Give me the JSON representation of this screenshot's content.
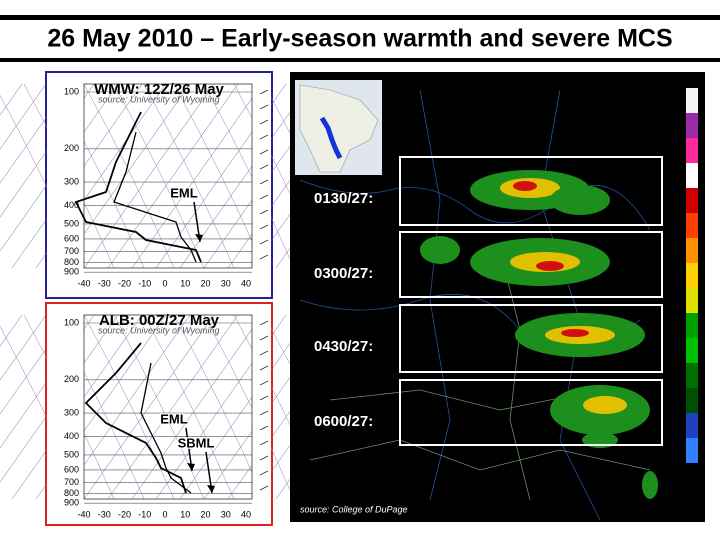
{
  "title": "26 May 2010 – Early-season warmth and severe MCS",
  "soundings": [
    {
      "label": "WMW: 12Z/26 May",
      "source": "source: University of Wyoming",
      "pressure_labels": [
        "100",
        "200",
        "300",
        "400",
        "500",
        "600",
        "700",
        "800",
        "900"
      ],
      "temperature_labels": [
        "-40",
        "-30",
        "-20",
        "-10",
        "0",
        "10",
        "20",
        "30",
        "40"
      ],
      "annotations": [
        "EML"
      ]
    },
    {
      "label": "ALB: 00Z/27 May",
      "source": "source: University of Wyoming",
      "pressure_labels": [
        "100",
        "200",
        "300",
        "400",
        "500",
        "600",
        "700",
        "800",
        "900"
      ],
      "temperature_labels": [
        "-40",
        "-30",
        "-20",
        "-10",
        "0",
        "10",
        "20",
        "30",
        "40"
      ],
      "annotations": [
        "EML",
        "SBML"
      ]
    }
  ],
  "radar": {
    "panels": [
      "0130/27:",
      "0300/27:",
      "0430/27:",
      "0600/27:"
    ],
    "source": "source: College of DuPage"
  }
}
